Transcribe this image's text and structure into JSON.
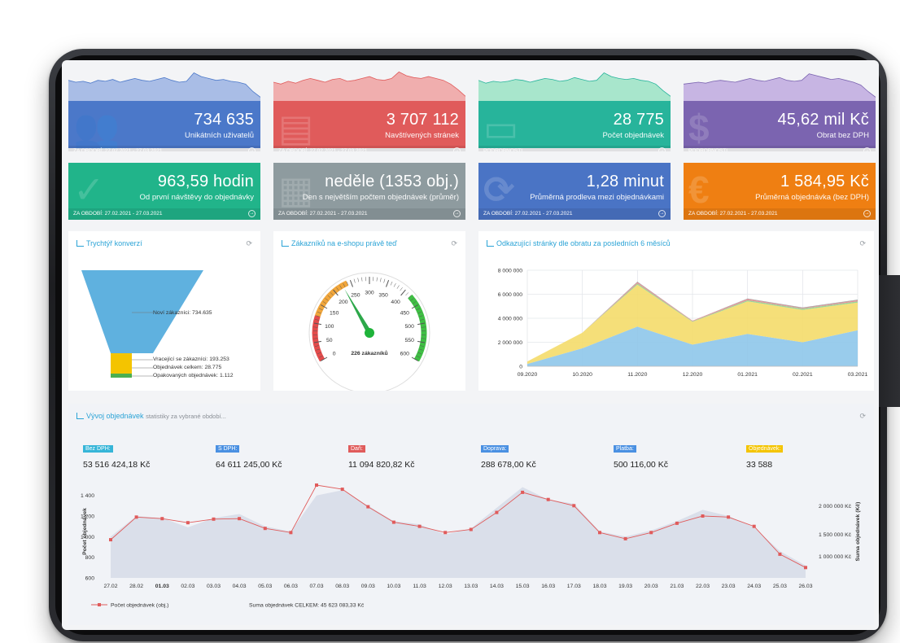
{
  "tiles_row1": [
    {
      "value": "734 635",
      "label": "Unikátních uživatelů",
      "footer": "ZA OBDOBÍ: 27.02.2021 - 27.03.2021",
      "color": "#4b78c9",
      "spark_color": "#a9bde6",
      "icon": "users-icon"
    },
    {
      "value": "3 707 112",
      "label": "Navštívených stránek",
      "footer": "ZA OBDOBÍ: 27.02.2021 - 27.03.2021",
      "color": "#e05b5b",
      "spark_color": "#f0aeae",
      "icon": "document-icon"
    },
    {
      "value": "28 775",
      "label": "Počet objednávek",
      "footer": "PODROBNOSTI",
      "color": "#27b49b",
      "spark_color": "#a8e6cc",
      "icon": "monitor-icon"
    },
    {
      "value": "45,62 mil Kč",
      "label": "Obrat bez DPH",
      "footer": "PODROBNOSTI",
      "color": "#7b64b0",
      "spark_color": "#c7b5e3",
      "icon": "dollar-icon"
    }
  ],
  "tiles_row2": [
    {
      "value": "963,59 hodin",
      "label": "Od první návštěvy do objednávky",
      "footer": "ZA OBDOBÍ: 27.02.2021 - 27.03.2021",
      "color": "#21b48a",
      "icon": "checkmark-icon"
    },
    {
      "value": "neděle (1353 obj.)",
      "label": "Den s největším počtem objednávek (průměr)",
      "footer": "ZA OBDOBÍ: 27.02.2021 - 27.03.2021",
      "color": "#8e9b9f",
      "icon": "calendar-icon"
    },
    {
      "value": "1,28 minut",
      "label": "Průměrná prodleva mezi objednávkami",
      "footer": "ZA OBDOBÍ: 27.02.2021 - 27.03.2021",
      "color": "#4a74c5",
      "icon": "refresh-icon"
    },
    {
      "value": "1 584,95 Kč",
      "label": "Průměrná objednávka (bez DPH)",
      "footer": "ZA OBDOBÍ: 27.02.2021 - 27.03.2021",
      "color": "#ef7f12",
      "icon": "euro-icon"
    }
  ],
  "funnel": {
    "title": "Trychtýř konverzí",
    "labels": [
      "Noví zákazníci: 734.635",
      "Vracející se zákazníci: 193.253",
      "Objednávek celkem: 28.775",
      "Opakovaných objednávek: 1.112"
    ],
    "colors": [
      "#5fb1df",
      "#f4c400",
      "#4caf50"
    ]
  },
  "gauge": {
    "title": "Zákazníků na e-shopu právě teď",
    "value": 226,
    "value_label": "226 zákazníků",
    "ticks": [
      "0",
      "50",
      "100",
      "150",
      "200",
      "250",
      "300",
      "350",
      "400",
      "450",
      "500",
      "550",
      "600"
    ]
  },
  "referrers": {
    "title": "Odkazující stránky dle obratu za posledních 6 měsíců"
  },
  "orders": {
    "title": "Vývoj objednávek",
    "subtitle": "statistiky za vybrané období...",
    "kpis": [
      {
        "badge": "Bez DPH:",
        "value": "53 516 424,18 Kč",
        "color": "#36b5d8"
      },
      {
        "badge": "S DPH:",
        "value": "64 611 245,00 Kč",
        "color": "#4a90e2"
      },
      {
        "badge": "Daň:",
        "value": "11 094 820,82 Kč",
        "color": "#e05b5b"
      },
      {
        "badge": "Doprava:",
        "value": "288 678,00 Kč",
        "color": "#4a90e2"
      },
      {
        "badge": "Platba:",
        "value": "500 116,00 Kč",
        "color": "#4a90e2"
      },
      {
        "badge": "Objednávek:",
        "value": "33 588",
        "color": "#f4c400"
      }
    ],
    "legend_series": "Počet objednávek (obj.)",
    "legend_total": "Suma objednávek CELKEM: 45 623 083,33 Kč"
  },
  "chart_data": [
    {
      "type": "area",
      "title": "Odkazující stránky dle obratu za posledních 6 měsíců",
      "categories": [
        "09.2020",
        "10.2020",
        "11.2020",
        "12.2020",
        "01.2021",
        "02.2021",
        "03.2021"
      ],
      "ylim": [
        0,
        8000000
      ],
      "yticks": [
        "0",
        "2 000 000",
        "4 000 000",
        "6 000 000",
        "8 000 000"
      ],
      "stacked": true,
      "series": [
        {
          "values": [
            200000,
            1500000,
            3300000,
            1800000,
            2700000,
            2000000,
            3000000
          ],
          "color": "#8ec7ea"
        },
        {
          "values": [
            200000,
            1300000,
            3500000,
            1900000,
            2700000,
            2700000,
            2300000
          ],
          "color": "#f4dc6a"
        },
        {
          "values": [
            0,
            0,
            100000,
            50000,
            100000,
            100000,
            100000
          ],
          "color": "#8fd18f"
        },
        {
          "values": [
            0,
            0,
            100000,
            50000,
            100000,
            50000,
            100000
          ],
          "color": "#e8858c"
        },
        {
          "values": [
            0,
            0,
            50000,
            0,
            50000,
            50000,
            50000
          ],
          "color": "#999999"
        }
      ]
    },
    {
      "type": "line",
      "title": "Vývoj objednávek",
      "categories": [
        "27.02",
        "28.02",
        "01.03",
        "02.03",
        "03.03",
        "04.03",
        "05.03",
        "06.03",
        "07.03",
        "08.03",
        "09.03",
        "10.03",
        "11.03",
        "12.03",
        "13.03",
        "14.03",
        "15.03",
        "16.03",
        "17.03",
        "18.03",
        "19.03",
        "20.03",
        "21.03",
        "22.03",
        "23.03",
        "24.03",
        "25.03",
        "26.03"
      ],
      "ylabel": "Počet objednávek",
      "y2label": "Suma objednávek (Kč)",
      "ylim": [
        600,
        1500
      ],
      "yticks": [
        "600",
        "800",
        "1 000",
        "1 200",
        "1 400"
      ],
      "y2ticks": [
        "1 000 000 Kč",
        "1 500 000 Kč",
        "2 000 000 Kč"
      ],
      "series": [
        {
          "name": "Počet objednávek (obj.)",
          "values": [
            970,
            1190,
            1175,
            1135,
            1170,
            1175,
            1080,
            1040,
            1500,
            1460,
            1290,
            1140,
            1100,
            1040,
            1070,
            1235,
            1430,
            1360,
            1300,
            1040,
            980,
            1040,
            1130,
            1200,
            1190,
            1100,
            830,
            700
          ],
          "color": "#e05b5b"
        }
      ],
      "area_values": [
        1000,
        1200,
        1180,
        1090,
        1180,
        1220,
        1100,
        1050,
        1400,
        1450,
        1300,
        1150,
        1120,
        1020,
        1080,
        1280,
        1480,
        1360,
        1320,
        1050,
        1000,
        1060,
        1150,
        1260,
        1200,
        1090,
        860,
        720
      ],
      "area_color": "#d6dbe8"
    }
  ],
  "spark_series": [
    [
      22,
      20,
      21,
      19,
      22,
      21,
      23,
      20,
      22,
      24,
      22,
      21,
      23,
      25,
      22,
      20,
      21,
      30,
      26,
      24,
      22,
      23,
      21,
      20,
      18,
      10,
      4
    ],
    [
      20,
      18,
      21,
      19,
      22,
      24,
      22,
      20,
      23,
      24,
      21,
      22,
      24,
      26,
      23,
      22,
      24,
      31,
      27,
      25,
      24,
      26,
      24,
      22,
      18,
      12,
      5
    ],
    [
      22,
      19,
      21,
      20,
      21,
      23,
      22,
      20,
      22,
      24,
      23,
      21,
      22,
      25,
      23,
      21,
      22,
      30,
      26,
      24,
      23,
      24,
      22,
      21,
      18,
      11,
      5
    ],
    [
      18,
      19,
      20,
      19,
      21,
      22,
      21,
      20,
      22,
      24,
      22,
      21,
      23,
      25,
      22,
      21,
      22,
      29,
      27,
      25,
      23,
      24,
      22,
      20,
      17,
      10,
      4
    ]
  ]
}
